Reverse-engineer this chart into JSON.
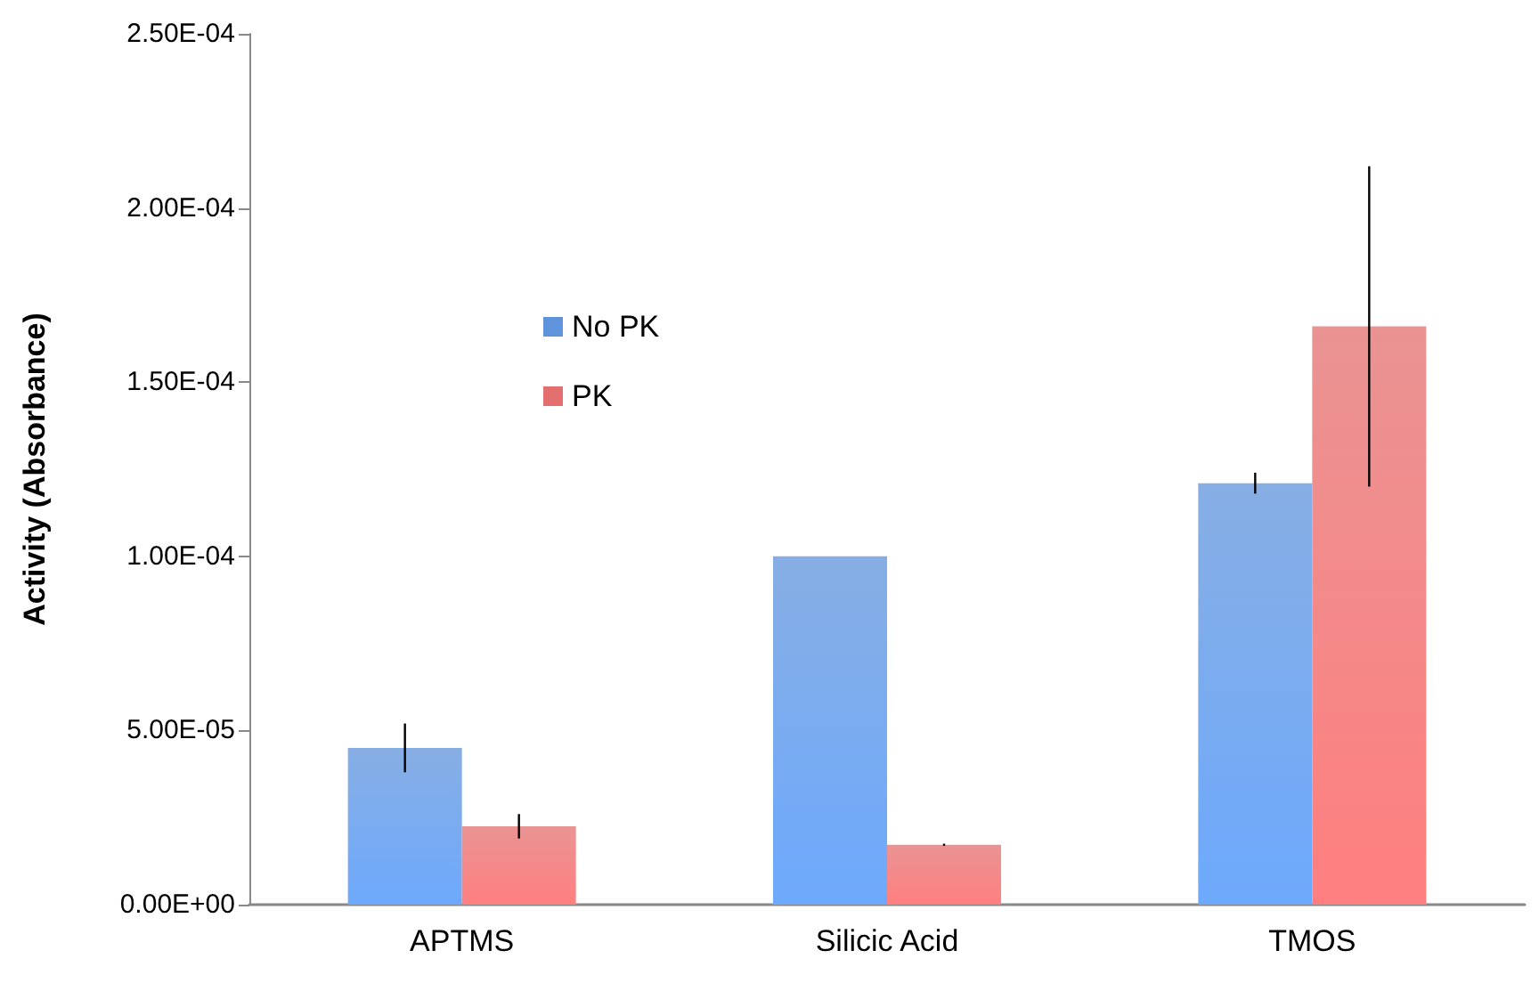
{
  "chart_data": {
    "type": "bar",
    "ylabel": "Activity (Absorbance)",
    "categories": [
      "APTMS",
      "Silicic Acid",
      "TMOS"
    ],
    "series": [
      {
        "name": "No PK",
        "color": "#5f93dc",
        "values": [
          4.5e-05,
          0.0001,
          0.000121
        ],
        "errors": [
          7e-06,
          null,
          3e-06
        ]
      },
      {
        "name": "PK",
        "color": "#e46f6f",
        "values": [
          2.25e-05,
          1.72e-05,
          0.000166
        ],
        "errors": [
          3.5e-06,
          3e-07,
          4.6e-05
        ]
      }
    ],
    "ylim": [
      0,
      0.00025
    ],
    "yticks": [
      {
        "value": 0,
        "label": "0.00E+00"
      },
      {
        "value": 5e-05,
        "label": "5.00E-05"
      },
      {
        "value": 0.0001,
        "label": "1.00E-04"
      },
      {
        "value": 0.00015,
        "label": "1.50E-04"
      },
      {
        "value": 0.0002,
        "label": "2.00E-04"
      },
      {
        "value": 0.00025,
        "label": "2.50E-04"
      }
    ],
    "grid": false,
    "legend": "top left"
  }
}
